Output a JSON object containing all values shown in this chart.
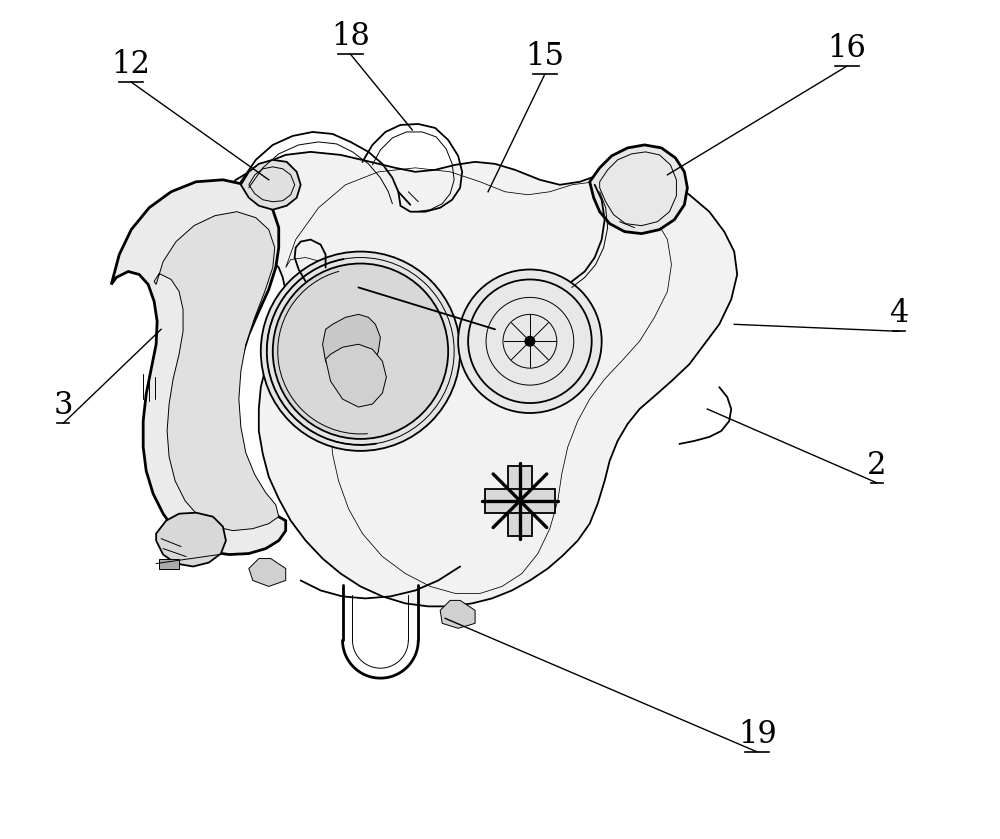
{
  "bg_color": "#ffffff",
  "line_color": "#000000",
  "fig_width": 10.0,
  "fig_height": 8.39,
  "font_size": 22,
  "lw_thin": 0.7,
  "lw_mid": 1.3,
  "lw_thick": 2.0
}
